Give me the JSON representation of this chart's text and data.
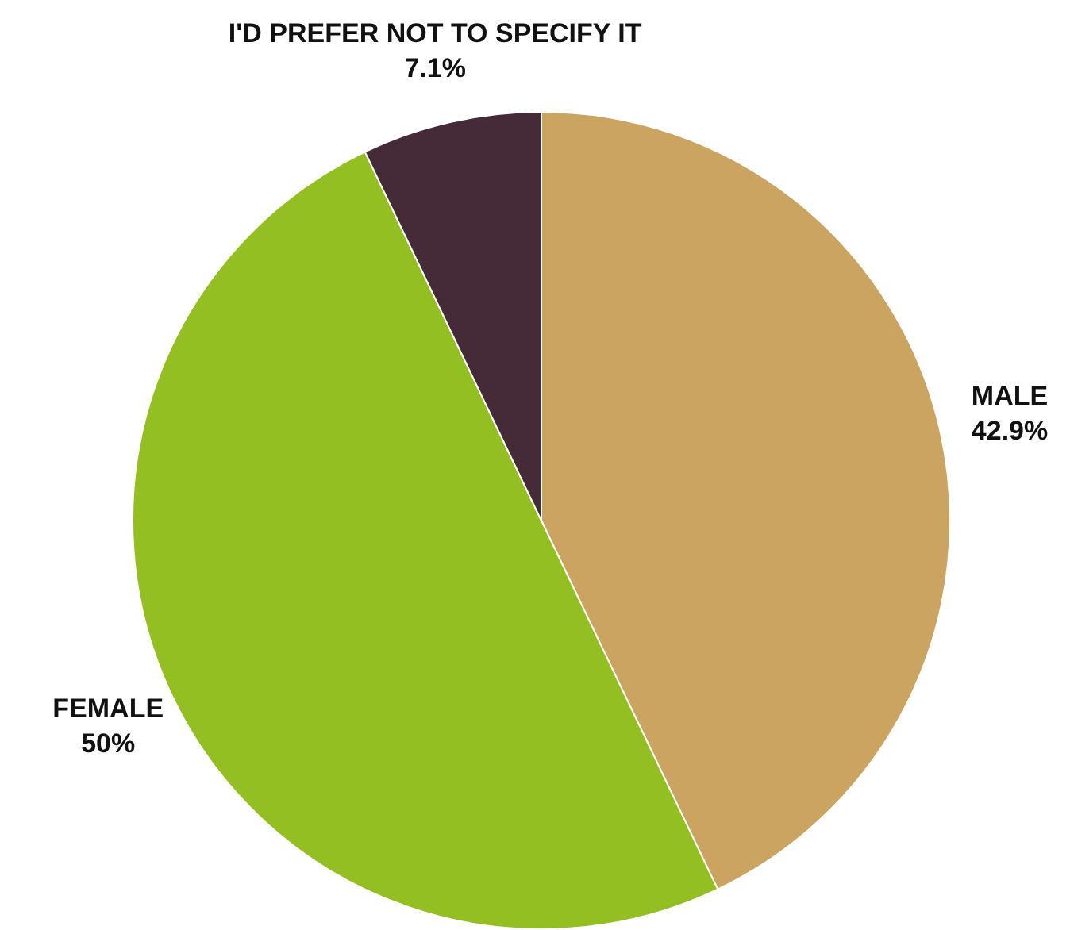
{
  "chart_data": {
    "type": "pie",
    "categories": [
      "MALE",
      "FEMALE",
      "I'D PREFER NOT TO SPECIFY IT"
    ],
    "values": [
      42.9,
      50,
      7.1
    ],
    "colors": [
      "#cba462",
      "#93bf22",
      "#452a38"
    ],
    "value_labels": [
      "42.9%",
      "50%",
      "7.1%"
    ],
    "legend": false
  }
}
